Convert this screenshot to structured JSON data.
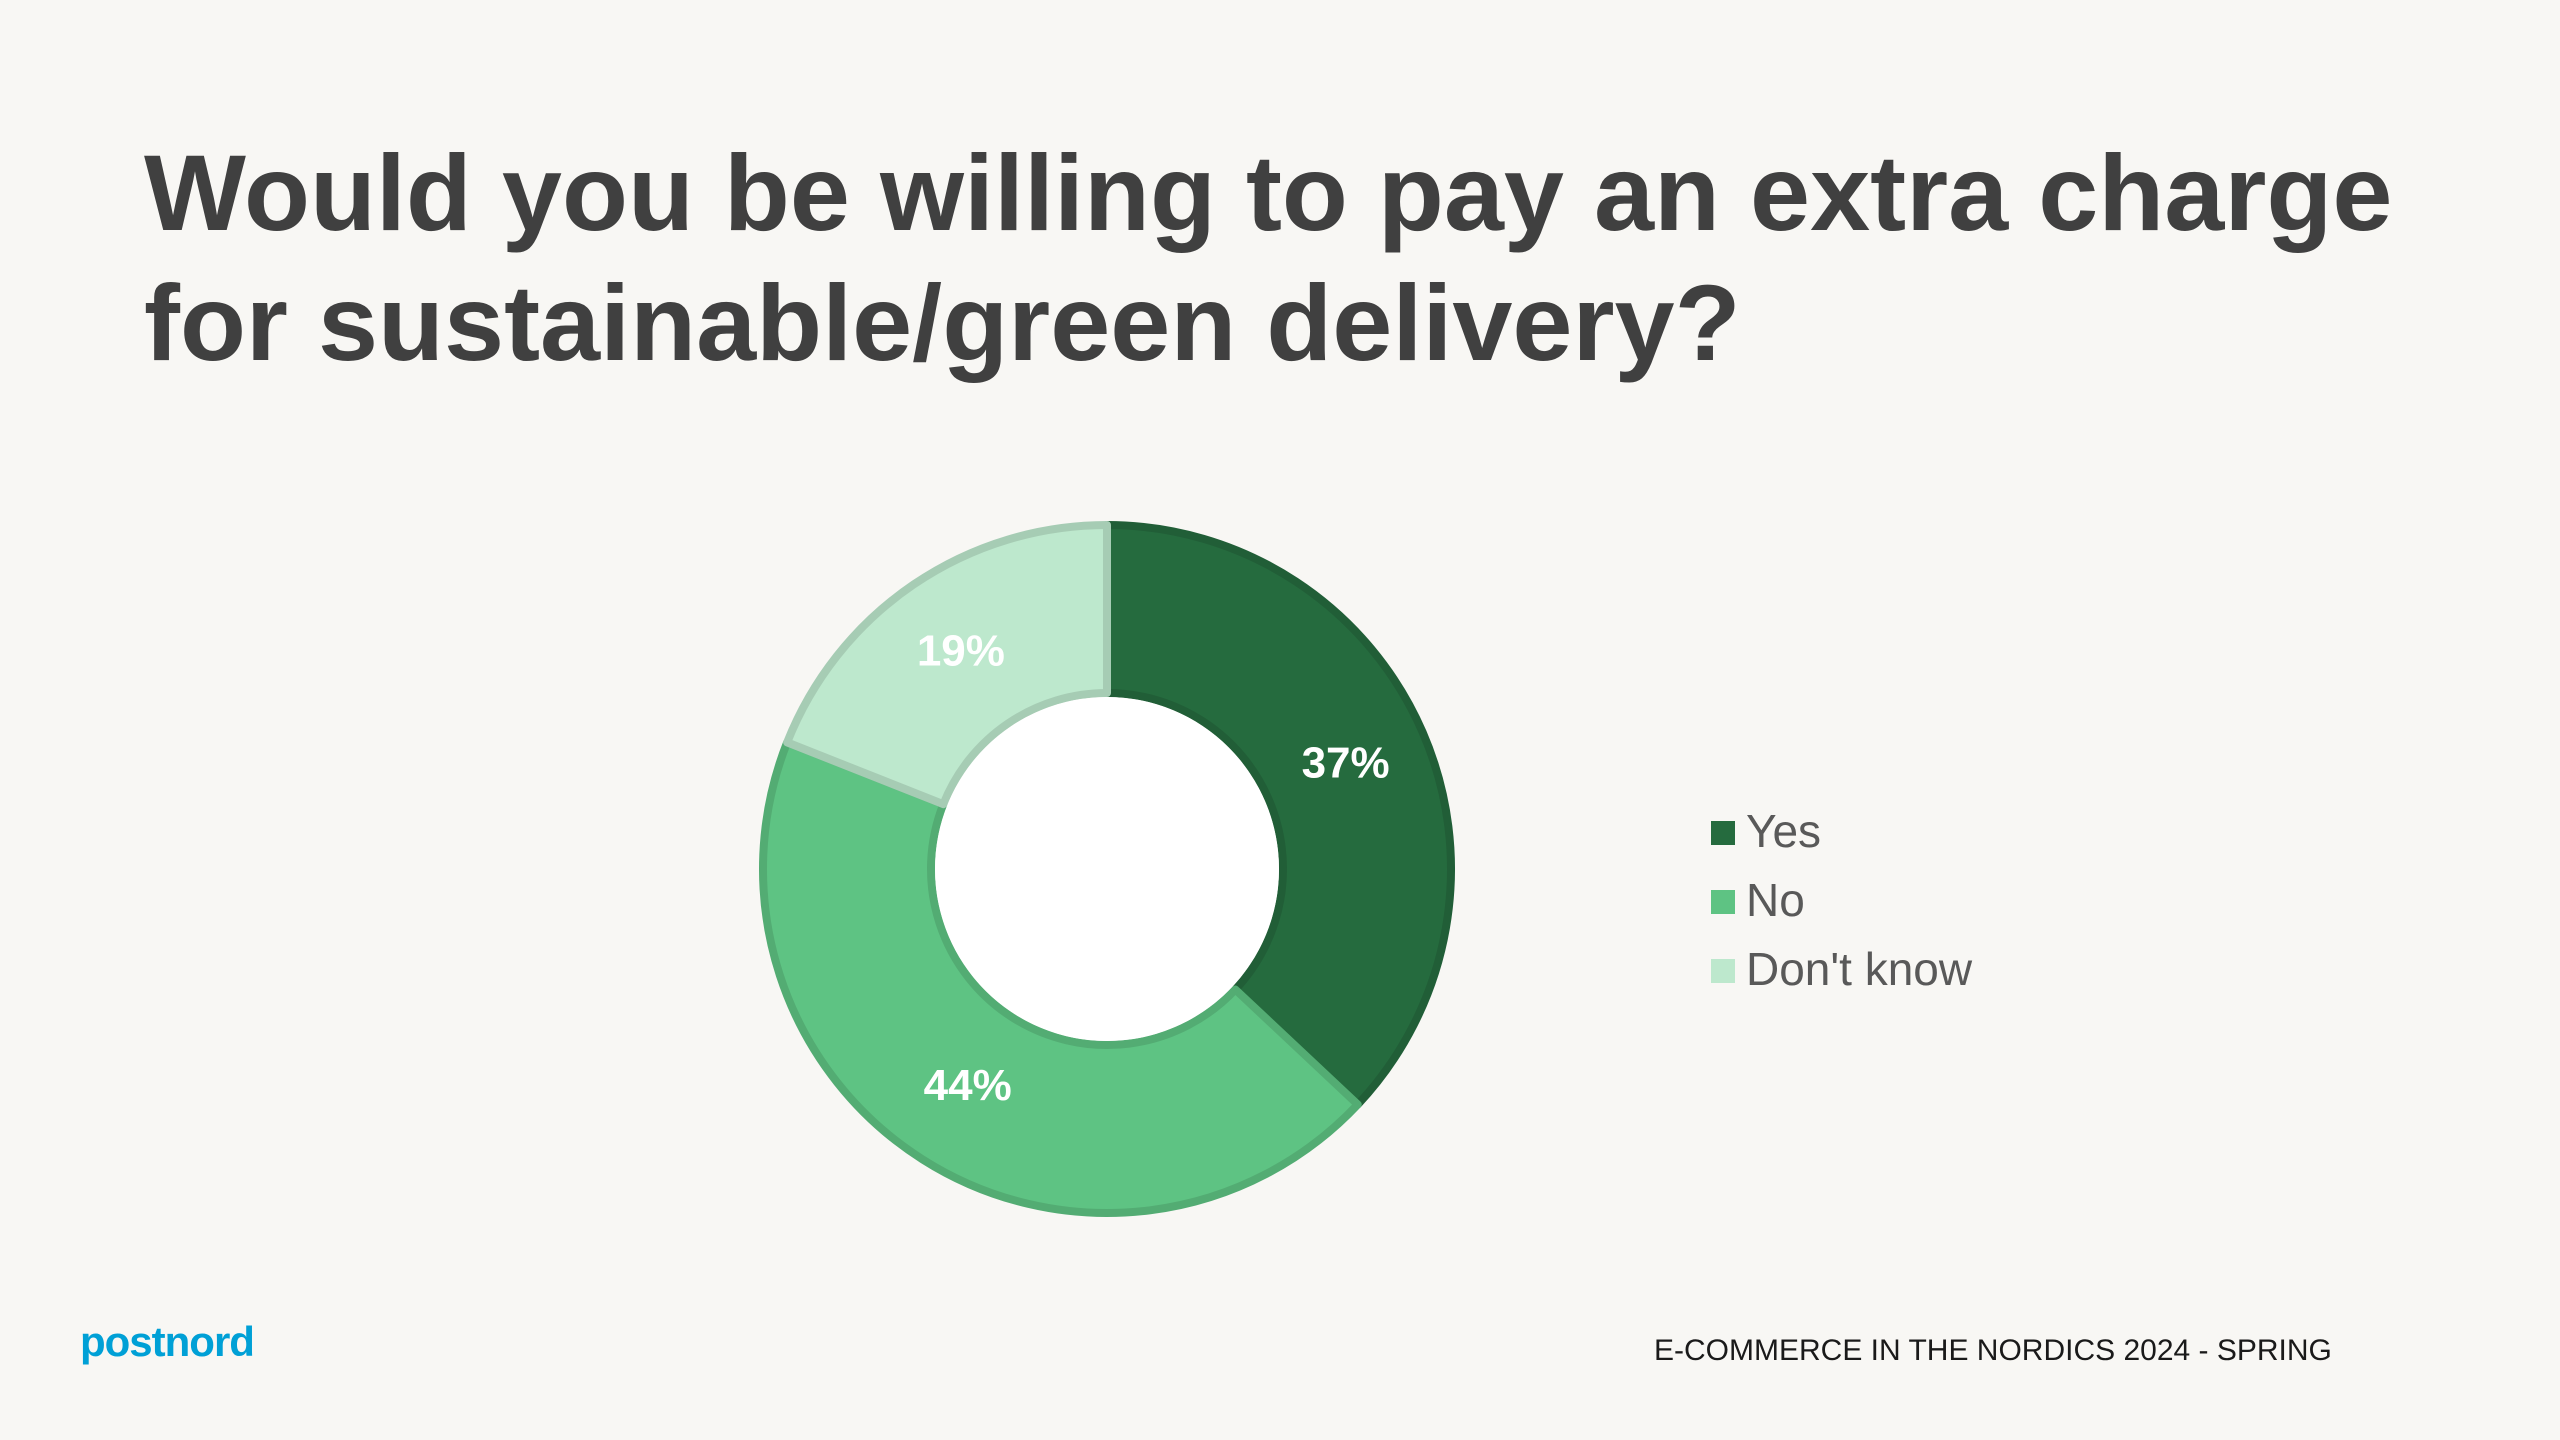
{
  "chart_data": {
    "type": "donut",
    "title": "Would you be willing to pay an extra charge for sustainable/green delivery?",
    "categories": [
      "Yes",
      "No",
      "Don't know"
    ],
    "values": [
      37,
      44,
      19
    ],
    "value_labels": [
      "37%",
      "44%",
      "19%"
    ],
    "colors": [
      "#256b3e",
      "#5ec383",
      "#bde8cd"
    ],
    "label_colors": [
      "#ffffff",
      "#ffffff",
      "#ffffff"
    ]
  },
  "footer": {
    "logo": "postnord",
    "report": "E-COMMERCE IN THE NORDICS 2024 - SPRING"
  }
}
